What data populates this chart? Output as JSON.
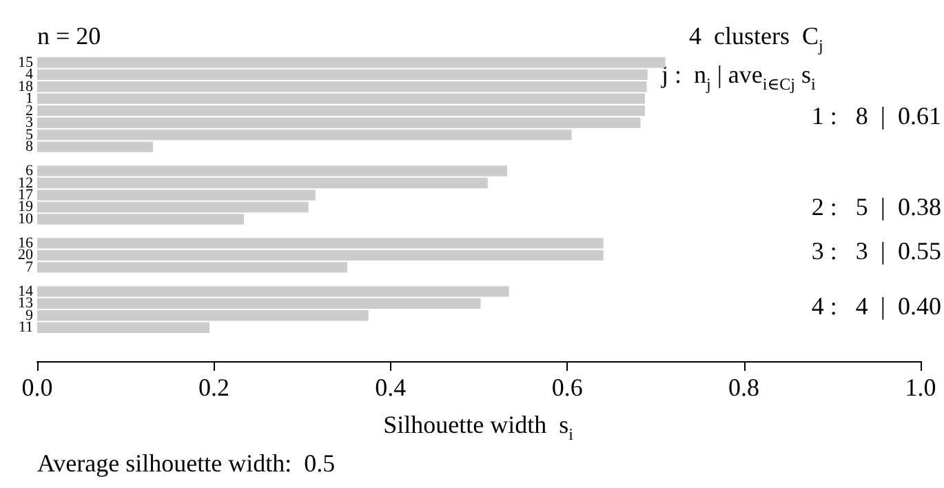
{
  "chart_data": {
    "type": "bar",
    "orientation": "horizontal",
    "title": "n = 20",
    "xlabel": "Silhouette width  s$_{i}$",
    "categories": [
      "15",
      "4",
      "18",
      "1",
      "2",
      "3",
      "5",
      "8",
      null,
      "6",
      "12",
      "17",
      "19",
      "10",
      null,
      "16",
      "20",
      "7",
      null,
      "14",
      "13",
      "9",
      "11"
    ],
    "values": [
      0.711,
      0.691,
      0.69,
      0.688,
      0.688,
      0.683,
      0.605,
      0.131,
      null,
      0.532,
      0.51,
      0.315,
      0.307,
      0.234,
      null,
      0.641,
      0.641,
      0.351,
      null,
      0.534,
      0.502,
      0.375,
      0.195
    ],
    "color": "#cccccc",
    "xlim": [
      0,
      1
    ],
    "xticks": [
      {
        "value": 0,
        "label": "0.0"
      },
      {
        "value": 0.2,
        "label": "0.2"
      },
      {
        "value": 0.4,
        "label": "0.4"
      },
      {
        "value": 0.6,
        "label": "0.6"
      },
      {
        "value": 0.8,
        "label": "0.8"
      },
      {
        "value": 1,
        "label": "1.0"
      }
    ],
    "grid": false,
    "annotations": [
      "4  clusters  C$_{j}$",
      "j :  n$_{j}$ | ave$_{i∈Cj}$ s$_{i}$",
      "1 :   8  |  0.61",
      "2 :   5  |  0.38",
      "3 :   3  |  0.55",
      "4 :   4  |  0.40",
      "Average silhouette width:  0.5"
    ]
  }
}
